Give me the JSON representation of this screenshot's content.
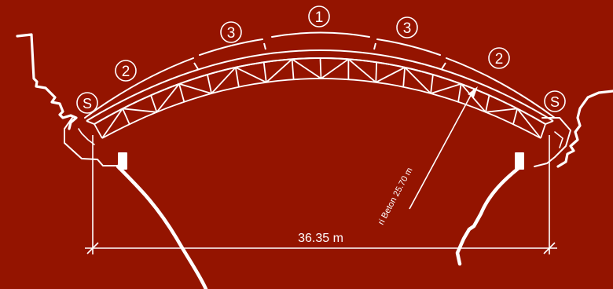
{
  "diagram": {
    "background_color": "#941400",
    "line_color": "#ffffff",
    "segment_markers": {
      "crown": "1",
      "upper_left": "3",
      "upper_right": "3",
      "lower_left": "2",
      "lower_right": "2",
      "support_left": "S",
      "support_right": "S"
    },
    "span_label": "36.35 m",
    "radius_label": "ri Beton 25.70 m"
  }
}
